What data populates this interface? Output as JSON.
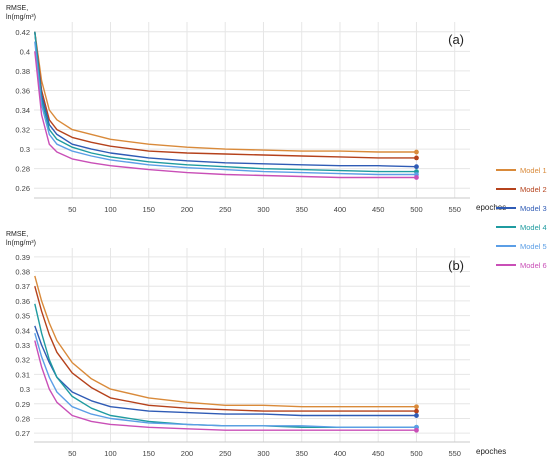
{
  "legend": {
    "colors": [
      "#d98a3a",
      "#b5421c",
      "#2f5bb5",
      "#1f9ba0",
      "#5b9ee6",
      "#c94fb7"
    ]
  },
  "chart_data": [
    {
      "type": "line",
      "panel_label": "(a)",
      "ylabel_line1": "RMSE,",
      "ylabel_line2": "ln(mg/m³)",
      "xlabel": "epoches",
      "xticks": [
        50,
        100,
        150,
        200,
        250,
        300,
        350,
        400,
        450,
        500,
        550
      ],
      "yticks": [
        0.26,
        0.28,
        0.3,
        0.32,
        0.34,
        0.36,
        0.38,
        0.4,
        0.42
      ],
      "xlim": [
        0,
        570
      ],
      "ylim": [
        0.25,
        0.43
      ],
      "grid": true,
      "legend_position": "right",
      "series": [
        {
          "name": "Model 1",
          "x": [
            1,
            10,
            20,
            30,
            50,
            75,
            100,
            150,
            200,
            250,
            300,
            350,
            400,
            450,
            500
          ],
          "values": [
            0.42,
            0.37,
            0.34,
            0.33,
            0.32,
            0.315,
            0.31,
            0.305,
            0.302,
            0.3,
            0.299,
            0.298,
            0.298,
            0.297,
            0.297
          ]
        },
        {
          "name": "Model 2",
          "x": [
            1,
            10,
            20,
            30,
            50,
            75,
            100,
            150,
            200,
            250,
            300,
            350,
            400,
            450,
            500
          ],
          "values": [
            0.42,
            0.36,
            0.33,
            0.32,
            0.312,
            0.307,
            0.303,
            0.298,
            0.296,
            0.295,
            0.294,
            0.293,
            0.292,
            0.291,
            0.291
          ]
        },
        {
          "name": "Model 3",
          "x": [
            1,
            10,
            20,
            30,
            50,
            75,
            100,
            150,
            200,
            250,
            300,
            350,
            400,
            450,
            500
          ],
          "values": [
            0.42,
            0.355,
            0.325,
            0.315,
            0.305,
            0.3,
            0.296,
            0.291,
            0.288,
            0.286,
            0.285,
            0.284,
            0.283,
            0.283,
            0.282
          ]
        },
        {
          "name": "Model 4",
          "x": [
            1,
            10,
            20,
            30,
            50,
            75,
            100,
            150,
            200,
            250,
            300,
            350,
            400,
            450,
            500
          ],
          "values": [
            0.42,
            0.35,
            0.32,
            0.31,
            0.302,
            0.296,
            0.292,
            0.287,
            0.284,
            0.282,
            0.28,
            0.279,
            0.278,
            0.277,
            0.277
          ]
        },
        {
          "name": "Model 5",
          "x": [
            1,
            10,
            20,
            30,
            50,
            75,
            100,
            150,
            200,
            250,
            300,
            350,
            400,
            450,
            500
          ],
          "values": [
            0.41,
            0.345,
            0.315,
            0.305,
            0.298,
            0.293,
            0.289,
            0.284,
            0.281,
            0.279,
            0.277,
            0.276,
            0.275,
            0.274,
            0.274
          ]
        },
        {
          "name": "Model 6",
          "x": [
            1,
            10,
            20,
            30,
            50,
            75,
            100,
            150,
            200,
            250,
            300,
            350,
            400,
            450,
            500
          ],
          "values": [
            0.4,
            0.335,
            0.305,
            0.297,
            0.29,
            0.286,
            0.283,
            0.279,
            0.276,
            0.274,
            0.273,
            0.272,
            0.271,
            0.271,
            0.271
          ]
        }
      ]
    },
    {
      "type": "line",
      "panel_label": "(b)",
      "ylabel_line1": "RMSE,",
      "ylabel_line2": "ln(mg/m³)",
      "xlabel": "epoches",
      "xticks": [
        50,
        100,
        150,
        200,
        250,
        300,
        350,
        400,
        450,
        500,
        550
      ],
      "yticks": [
        0.27,
        0.28,
        0.29,
        0.3,
        0.31,
        0.32,
        0.33,
        0.34,
        0.35,
        0.36,
        0.37,
        0.38,
        0.39
      ],
      "xlim": [
        0,
        570
      ],
      "ylim": [
        0.264,
        0.396
      ],
      "grid": true,
      "legend_position": "right",
      "series": [
        {
          "name": "Model 1",
          "x": [
            1,
            10,
            20,
            30,
            50,
            75,
            100,
            150,
            200,
            250,
            300,
            350,
            400,
            450,
            500
          ],
          "values": [
            0.377,
            0.36,
            0.345,
            0.333,
            0.318,
            0.307,
            0.3,
            0.294,
            0.291,
            0.289,
            0.289,
            0.288,
            0.288,
            0.288,
            0.288
          ]
        },
        {
          "name": "Model 2",
          "x": [
            1,
            10,
            20,
            30,
            50,
            75,
            100,
            150,
            200,
            250,
            300,
            350,
            400,
            450,
            500
          ],
          "values": [
            0.37,
            0.353,
            0.337,
            0.325,
            0.311,
            0.301,
            0.294,
            0.289,
            0.287,
            0.286,
            0.285,
            0.285,
            0.285,
            0.285,
            0.285
          ]
        },
        {
          "name": "Model 3",
          "x": [
            1,
            10,
            20,
            30,
            50,
            75,
            100,
            150,
            200,
            250,
            300,
            350,
            400,
            450,
            500
          ],
          "values": [
            0.343,
            0.33,
            0.318,
            0.308,
            0.298,
            0.292,
            0.288,
            0.285,
            0.284,
            0.283,
            0.283,
            0.282,
            0.282,
            0.282,
            0.282
          ]
        },
        {
          "name": "Model 4",
          "x": [
            1,
            10,
            20,
            30,
            50,
            75,
            100,
            150,
            200,
            250,
            300,
            350,
            400,
            450,
            500
          ],
          "values": [
            0.358,
            0.338,
            0.32,
            0.308,
            0.295,
            0.287,
            0.282,
            0.278,
            0.276,
            0.275,
            0.275,
            0.274,
            0.274,
            0.274,
            0.274
          ]
        },
        {
          "name": "Model 5",
          "x": [
            1,
            10,
            20,
            30,
            50,
            75,
            100,
            150,
            200,
            250,
            300,
            350,
            400,
            450,
            500
          ],
          "values": [
            0.338,
            0.322,
            0.308,
            0.298,
            0.288,
            0.283,
            0.28,
            0.277,
            0.276,
            0.275,
            0.275,
            0.275,
            0.274,
            0.274,
            0.274
          ]
        },
        {
          "name": "Model 6",
          "x": [
            1,
            10,
            20,
            30,
            50,
            75,
            100,
            150,
            200,
            250,
            300,
            350,
            400,
            450,
            500
          ],
          "values": [
            0.333,
            0.315,
            0.3,
            0.291,
            0.282,
            0.278,
            0.276,
            0.274,
            0.273,
            0.272,
            0.272,
            0.272,
            0.272,
            0.272,
            0.272
          ]
        }
      ]
    }
  ]
}
